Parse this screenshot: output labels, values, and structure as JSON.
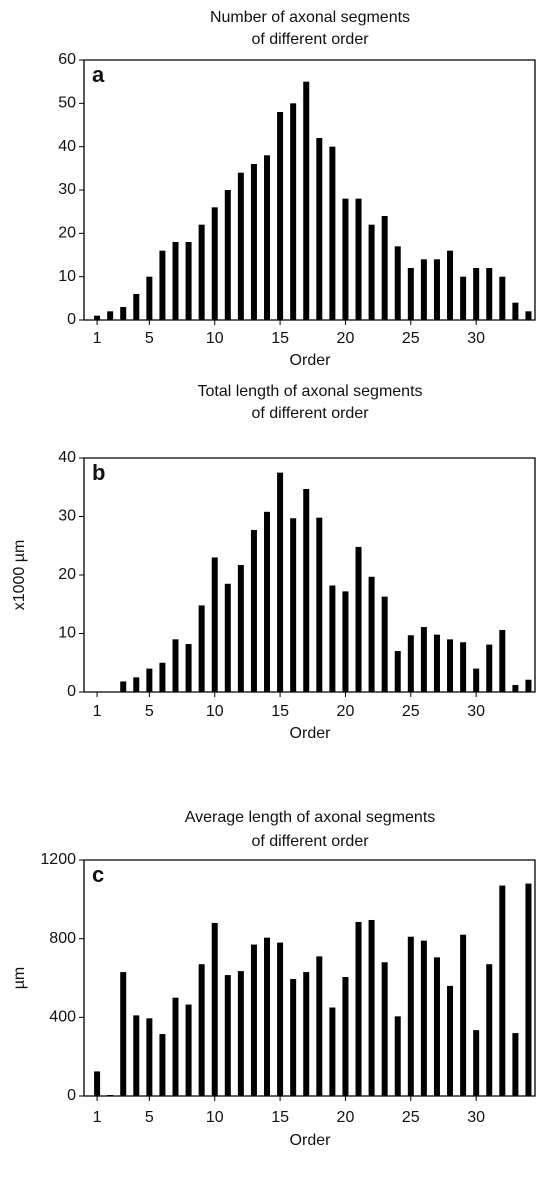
{
  "chart_data": [
    {
      "type": "bar",
      "title": [
        "Number of axonal segments",
        "of different order"
      ],
      "panel_label": "a",
      "xlabel": "Order",
      "x": [
        1,
        2,
        3,
        4,
        5,
        6,
        7,
        8,
        9,
        10,
        11,
        12,
        13,
        14,
        15,
        16,
        17,
        18,
        19,
        20,
        21,
        22,
        23,
        24,
        25,
        26,
        27,
        28,
        29,
        30,
        31,
        32,
        33,
        34
      ],
      "values": [
        1,
        2,
        3,
        6,
        10,
        16,
        18,
        18,
        22,
        26,
        30,
        34,
        36,
        38,
        48,
        50,
        55,
        42,
        40,
        28,
        28,
        22,
        24,
        17,
        12,
        14,
        14,
        16,
        10,
        12,
        12,
        10,
        4,
        2
      ],
      "xlim": [
        0,
        34.5
      ],
      "xticks": [
        1,
        5,
        10,
        15,
        20,
        25,
        30
      ],
      "ylim": [
        0,
        60
      ],
      "yticks": [
        0,
        10,
        20,
        30,
        40,
        50,
        60
      ],
      "color": "#000000"
    },
    {
      "type": "bar",
      "title": [
        "Total length of axonal segments",
        "of different order"
      ],
      "panel_label": "b",
      "xlabel": "Order",
      "ylabel": "x1000 µm",
      "x": [
        1,
        2,
        3,
        4,
        5,
        6,
        7,
        8,
        9,
        10,
        11,
        12,
        13,
        14,
        15,
        16,
        17,
        18,
        19,
        20,
        21,
        22,
        23,
        24,
        25,
        26,
        27,
        28,
        29,
        30,
        31,
        32,
        33,
        34
      ],
      "values": [
        0,
        0,
        1.8,
        2.5,
        4,
        5,
        9,
        8.2,
        14.8,
        23,
        18.5,
        21.7,
        27.7,
        30.8,
        37.5,
        29.7,
        34.7,
        29.8,
        18.2,
        17.2,
        24.8,
        19.7,
        16.3,
        7,
        9.7,
        11.1,
        9.8,
        9,
        8.5,
        4,
        8.1,
        10.6,
        1.2,
        2.1
      ],
      "xlim": [
        0,
        34.5
      ],
      "xticks": [
        1,
        5,
        10,
        15,
        20,
        25,
        30
      ],
      "ylim": [
        0,
        40
      ],
      "yticks": [
        0,
        10,
        20,
        30,
        40
      ],
      "color": "#000000"
    },
    {
      "type": "bar",
      "title": [
        "Average length of axonal segments",
        "of different order"
      ],
      "panel_label": "c",
      "xlabel": "Order",
      "ylabel": "µm",
      "x": [
        1,
        2,
        3,
        4,
        5,
        6,
        7,
        8,
        9,
        10,
        11,
        12,
        13,
        14,
        15,
        16,
        17,
        18,
        19,
        20,
        21,
        22,
        23,
        24,
        25,
        26,
        27,
        28,
        29,
        30,
        31,
        32,
        33,
        34
      ],
      "values": [
        125,
        5,
        630,
        410,
        395,
        315,
        500,
        465,
        670,
        880,
        615,
        635,
        770,
        805,
        780,
        595,
        630,
        710,
        450,
        605,
        885,
        895,
        680,
        405,
        810,
        790,
        705,
        560,
        820,
        335,
        670,
        1070,
        320,
        1080
      ],
      "xlim": [
        0,
        34.5
      ],
      "xticks": [
        1,
        5,
        10,
        15,
        20,
        25,
        30
      ],
      "ylim": [
        0,
        1200
      ],
      "yticks": [
        0,
        400,
        800,
        1200
      ],
      "color": "#000000"
    }
  ]
}
